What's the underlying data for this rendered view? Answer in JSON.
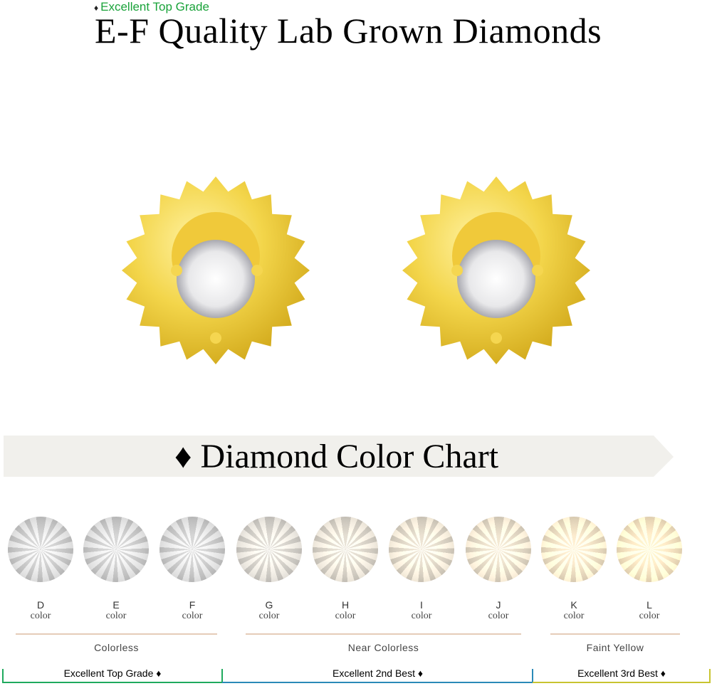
{
  "header": {
    "badge_icon": "diamond-icon",
    "badge": "Excellent Top Grade",
    "title": "E-F Quality Lab Grown Diamonds",
    "badge_color": "#1aa33a"
  },
  "banner": {
    "icon": "♦",
    "title": "Diamond Color Chart"
  },
  "grades": [
    {
      "letter": "D",
      "word": "color"
    },
    {
      "letter": "E",
      "word": "color"
    },
    {
      "letter": "F",
      "word": "color"
    },
    {
      "letter": "G",
      "word": "color"
    },
    {
      "letter": "H",
      "word": "color"
    },
    {
      "letter": "I",
      "word": "color"
    },
    {
      "letter": "J",
      "word": "color"
    },
    {
      "letter": "K",
      "word": "color"
    },
    {
      "letter": "L",
      "word": "color"
    }
  ],
  "groups": [
    "Colorless",
    "Near Colorless",
    "Faint Yellow"
  ],
  "tiers": [
    {
      "label": "Excellent Top Grade ♦",
      "color": "#1faa5e"
    },
    {
      "label": "Excellent 2nd Best ♦",
      "color": "#2a8ab8"
    },
    {
      "label": "Excellent 3rd Best ♦",
      "color": "#c8c430"
    }
  ]
}
